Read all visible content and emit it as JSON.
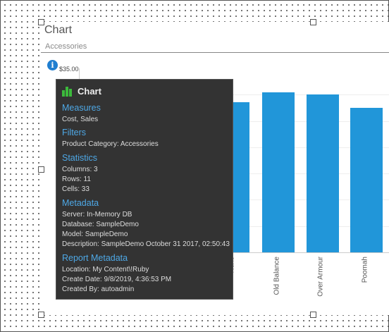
{
  "widget": {
    "title": "Chart",
    "subtitle": "Accessories"
  },
  "info_icon": {
    "glyph": "i",
    "icon": "info-icon"
  },
  "colors": {
    "bar": "#2196d9",
    "tooltip_bg": "#333333",
    "tooltip_heading": "#4ea8e6",
    "chart_icon": "#3cba3c"
  },
  "chart_data": {
    "type": "bar",
    "categories": [
      "Nuke",
      "Old Balance",
      "Over Armour",
      "Poomah"
    ],
    "values": [
      28.5,
      30.5,
      30,
      27.5
    ],
    "ytick_labels": [
      "$35.00"
    ],
    "ylim": [
      0,
      35
    ],
    "grid": true
  },
  "tooltip": {
    "title": "Chart",
    "sections": [
      {
        "heading": "Measures",
        "lines": [
          "Cost, Sales"
        ]
      },
      {
        "heading": "Filters",
        "lines": [
          "Product Category: Accessories"
        ]
      },
      {
        "heading": "Statistics",
        "lines": [
          "Columns: 3",
          "Rows: 11",
          "Cells: 33"
        ]
      },
      {
        "heading": "Metadata",
        "lines": [
          "Server: In-Memory DB",
          "Database: SampleDemo",
          "Model: SampleDemo",
          "Description: SampleDemo October 31 2017, 02:50:43"
        ]
      },
      {
        "heading": "Report Metadata",
        "lines": [
          "Location: My Content\\!Ruby",
          "Create Date: 9/8/2019, 4:36:53 PM",
          "Created By: autoadmin"
        ]
      }
    ]
  }
}
